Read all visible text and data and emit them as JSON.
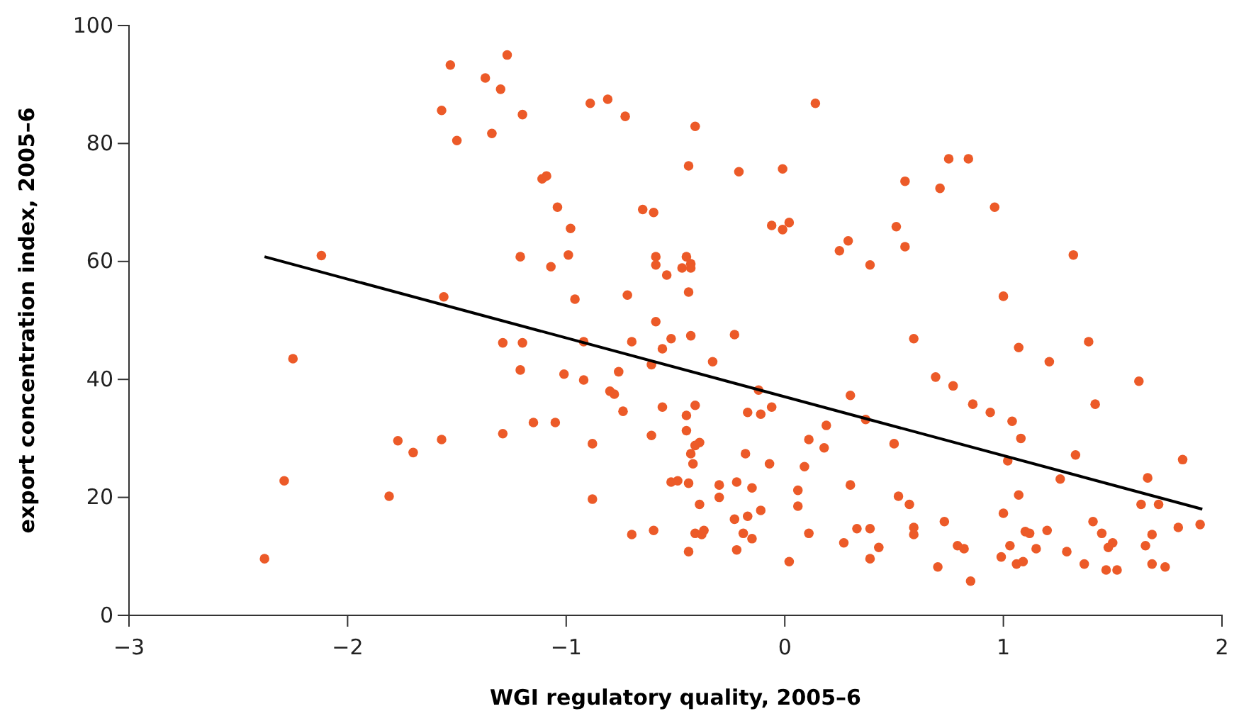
{
  "chart_data": {
    "type": "scatter",
    "xlabel": "WGI regulatory quality, 2005–6",
    "ylabel": "export concentration index, 2005–6",
    "xlim": [
      -3,
      2
    ],
    "ylim": [
      0,
      100
    ],
    "xticks": [
      {
        "value": -3,
        "label": "−3"
      },
      {
        "value": -2,
        "label": "−2"
      },
      {
        "value": -1,
        "label": "−1"
      },
      0,
      1,
      2
    ],
    "yticks": [
      0,
      20,
      40,
      60,
      80,
      100
    ],
    "grid": false,
    "series": [
      {
        "marker": "circle",
        "color": "#ec5a28",
        "x": [
          -2.38,
          -2.29,
          -2.25,
          -2.12,
          -1.81,
          -1.77,
          -1.7,
          -1.57,
          -1.56,
          -1.57,
          -1.53,
          -1.5,
          -1.37,
          -1.34,
          -1.3,
          -1.27,
          -1.29,
          -1.29,
          -1.2,
          -1.21,
          -1.2,
          -1.21,
          -1.15,
          -1.11,
          -1.09,
          -1.07,
          -1.05,
          -1.04,
          -1.01,
          -0.99,
          -0.98,
          -0.96,
          -0.92,
          -0.92,
          -0.89,
          -0.88,
          -0.88,
          -0.81,
          -0.8,
          -0.78,
          -0.76,
          -0.74,
          -0.73,
          -0.72,
          -0.7,
          -0.7,
          -0.65,
          -0.61,
          -0.61,
          -0.6,
          -0.59,
          -0.59,
          -0.59,
          -0.6,
          -0.56,
          -0.56,
          -0.54,
          -0.52,
          -0.52,
          -0.49,
          -0.47,
          -0.45,
          -0.43,
          -0.43,
          -0.44,
          -0.44,
          -0.43,
          -0.45,
          -0.45,
          -0.43,
          -0.41,
          -0.41,
          -0.42,
          -0.44,
          -0.44,
          -0.41,
          -0.41,
          -0.39,
          -0.39,
          -0.38,
          -0.37,
          -0.33,
          -0.3,
          -0.3,
          -0.23,
          -0.22,
          -0.22,
          -0.23,
          -0.21,
          -0.19,
          -0.18,
          -0.17,
          -0.17,
          -0.15,
          -0.15,
          -0.12,
          -0.11,
          -0.11,
          -0.07,
          -0.06,
          -0.06,
          -0.01,
          -0.01,
          0.02,
          0.02,
          0.06,
          0.06,
          0.09,
          0.11,
          0.11,
          0.14,
          0.18,
          0.19,
          0.25,
          0.27,
          0.29,
          0.3,
          0.3,
          0.33,
          0.37,
          0.39,
          0.39,
          0.39,
          0.43,
          0.5,
          0.51,
          0.52,
          0.55,
          0.55,
          0.57,
          0.59,
          0.59,
          0.59,
          0.69,
          0.7,
          0.71,
          0.73,
          0.75,
          0.77,
          0.79,
          0.82,
          0.84,
          0.85,
          0.86,
          0.94,
          0.96,
          0.99,
          1,
          1,
          1.02,
          1.03,
          1.04,
          1.06,
          1.07,
          1.07,
          1.08,
          1.09,
          1.1,
          1.12,
          1.15,
          1.2,
          1.21,
          1.26,
          1.29,
          1.32,
          1.33,
          1.37,
          1.39,
          1.41,
          1.42,
          1.45,
          1.47,
          1.48,
          1.5,
          1.52,
          1.62,
          1.63,
          1.65,
          1.66,
          1.68,
          1.68,
          1.71,
          1.74,
          1.8,
          1.82,
          1.9
        ],
        "values": [
          9.6,
          22.8,
          43.5,
          61,
          20.2,
          29.6,
          27.6,
          29.8,
          54,
          85.6,
          93.3,
          80.5,
          91.1,
          81.7,
          89.2,
          95,
          46.2,
          30.8,
          84.9,
          60.8,
          46.2,
          41.6,
          32.7,
          74,
          74.5,
          59.1,
          32.7,
          69.2,
          40.9,
          61.1,
          65.6,
          53.6,
          46.4,
          39.9,
          86.8,
          29.1,
          19.7,
          87.5,
          38,
          37.5,
          41.3,
          34.6,
          84.6,
          54.3,
          46.4,
          13.7,
          68.8,
          42.5,
          30.5,
          68.3,
          60.8,
          59.4,
          49.8,
          14.4,
          45.2,
          35.3,
          57.7,
          22.6,
          46.9,
          22.8,
          58.9,
          60.8,
          59.6,
          58.9,
          76.2,
          54.8,
          47.4,
          33.9,
          31.3,
          27.4,
          35.6,
          28.8,
          25.7,
          22.4,
          10.8,
          13.9,
          82.9,
          29.3,
          18.8,
          13.7,
          14.4,
          43,
          20,
          22.1,
          16.3,
          22.6,
          11.1,
          47.6,
          75.2,
          13.9,
          27.4,
          34.4,
          16.8,
          21.6,
          13,
          38.2,
          34.1,
          17.8,
          25.7,
          35.3,
          66.1,
          75.7,
          65.4,
          66.6,
          9.1,
          21.2,
          18.5,
          25.2,
          29.8,
          13.9,
          86.8,
          28.4,
          32.2,
          61.8,
          12.3,
          63.5,
          22.1,
          37.3,
          14.7,
          33.2,
          59.4,
          14.7,
          9.6,
          11.5,
          29.1,
          65.9,
          20.2,
          73.6,
          62.5,
          18.8,
          14.9,
          13.7,
          46.9,
          40.4,
          8.2,
          72.4,
          15.9,
          77.4,
          38.9,
          11.8,
          11.3,
          77.4,
          5.8,
          35.8,
          34.4,
          69.2,
          9.9,
          17.3,
          54.1,
          26.2,
          11.8,
          32.9,
          8.7,
          45.4,
          20.4,
          30,
          9.1,
          14.2,
          13.9,
          11.3,
          14.4,
          43,
          23.1,
          10.8,
          61.1,
          27.2,
          8.7,
          46.4,
          15.9,
          35.8,
          13.9,
          7.7,
          11.5,
          12.3,
          7.7,
          39.7,
          18.8,
          11.8,
          23.3,
          8.7,
          13.7,
          18.8,
          8.2,
          14.9,
          26.4,
          15.4
        ]
      },
      {
        "type": "line",
        "color": "#000000",
        "x": [
          -2.38,
          1.91
        ],
        "values": [
          60.8,
          18
        ]
      }
    ]
  }
}
